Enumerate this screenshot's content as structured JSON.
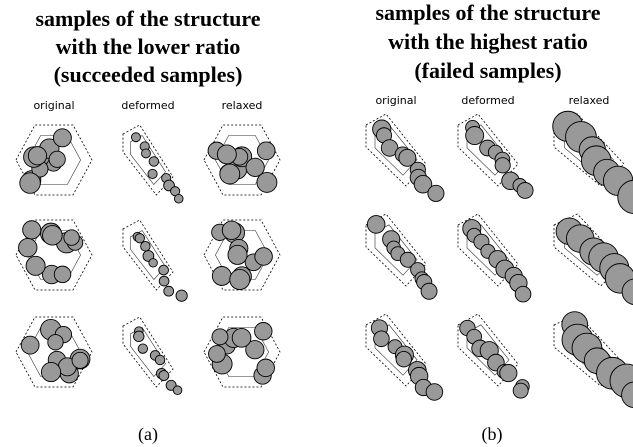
{
  "panels": [
    {
      "title": [
        "samples of the structure",
        "with the lower ratio",
        "(succeeded samples)"
      ],
      "columns": [
        "original",
        "deformed",
        "relaxed"
      ],
      "caption": "(a)"
    },
    {
      "title": [
        "samples of the structure",
        "with the highest ratio",
        "(failed samples)"
      ],
      "columns": [
        "original",
        "deformed",
        "relaxed"
      ],
      "caption": "(b)"
    }
  ]
}
